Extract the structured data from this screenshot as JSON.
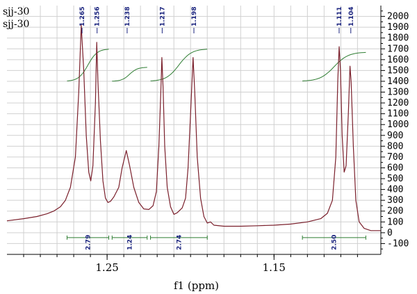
{
  "chart_data": {
    "type": "line",
    "sample_labels": [
      "sjj-30",
      "sjj-30"
    ],
    "xlabel": "f1 (ppm)",
    "x_ticks": [
      1.25,
      1.15
    ],
    "x_tick_labels": [
      "1.25",
      "1.15"
    ],
    "xlim": [
      1.31,
      1.086
    ],
    "ylim": [
      -200,
      2100
    ],
    "y_ticks": [
      -100,
      0,
      100,
      200,
      300,
      400,
      500,
      600,
      700,
      800,
      900,
      1000,
      1100,
      1200,
      1300,
      1400,
      1500,
      1600,
      1700,
      1800,
      1900,
      2000
    ],
    "y_tick_labels": [
      "-100",
      "0",
      "100",
      "200",
      "300",
      "400",
      "500",
      "600",
      "700",
      "800",
      "900",
      "1000",
      "1100",
      "1200",
      "1300",
      "1400",
      "1500",
      "1600",
      "1700",
      "1800",
      "1900",
      "2000"
    ],
    "grid": true,
    "spectrum_color": "#7a1f2b",
    "integral_color": "#2e7d32",
    "label_color": "#1a237e",
    "peaks": [
      {
        "ppm": 1.265,
        "label": "1.265",
        "height": 1960
      },
      {
        "ppm": 1.256,
        "label": "1.256",
        "height": 1760
      },
      {
        "ppm": 1.238,
        "label": "1.238",
        "height": 750
      },
      {
        "ppm": 1.217,
        "label": "1.217",
        "height": 1620
      },
      {
        "ppm": 1.198,
        "label": "1.198",
        "height": 1620
      },
      {
        "ppm": 1.111,
        "label": "1.111",
        "height": 1720
      },
      {
        "ppm": 1.104,
        "label": "1.104",
        "height": 1540
      }
    ],
    "spectrum": [
      [
        1.31,
        110
      ],
      [
        1.3,
        130
      ],
      [
        1.292,
        150
      ],
      [
        1.286,
        175
      ],
      [
        1.282,
        200
      ],
      [
        1.278,
        240
      ],
      [
        1.275,
        300
      ],
      [
        1.272,
        420
      ],
      [
        1.269,
        700
      ],
      [
        1.267,
        1300
      ],
      [
        1.2655,
        1920
      ],
      [
        1.264,
        1500
      ],
      [
        1.2625,
        900
      ],
      [
        1.261,
        560
      ],
      [
        1.2598,
        480
      ],
      [
        1.2585,
        620
      ],
      [
        1.257,
        1200
      ],
      [
        1.2562,
        1760
      ],
      [
        1.2555,
        1400
      ],
      [
        1.254,
        850
      ],
      [
        1.2525,
        480
      ],
      [
        1.251,
        320
      ],
      [
        1.2495,
        280
      ],
      [
        1.248,
        290
      ],
      [
        1.246,
        330
      ],
      [
        1.243,
        420
      ],
      [
        1.241,
        600
      ],
      [
        1.2385,
        760
      ],
      [
        1.2365,
        620
      ],
      [
        1.234,
        420
      ],
      [
        1.231,
        280
      ],
      [
        1.228,
        220
      ],
      [
        1.225,
        215
      ],
      [
        1.2225,
        250
      ],
      [
        1.2205,
        380
      ],
      [
        1.219,
        800
      ],
      [
        1.2178,
        1300
      ],
      [
        1.2172,
        1620
      ],
      [
        1.2165,
        1350
      ],
      [
        1.2155,
        800
      ],
      [
        1.214,
        420
      ],
      [
        1.212,
        240
      ],
      [
        1.21,
        170
      ],
      [
        1.208,
        185
      ],
      [
        1.205,
        230
      ],
      [
        1.203,
        320
      ],
      [
        1.2015,
        600
      ],
      [
        1.2,
        1100
      ],
      [
        1.1985,
        1620
      ],
      [
        1.1975,
        1300
      ],
      [
        1.196,
        700
      ],
      [
        1.194,
        320
      ],
      [
        1.192,
        150
      ],
      [
        1.19,
        90
      ],
      [
        1.188,
        100
      ],
      [
        1.186,
        70
      ],
      [
        1.18,
        60
      ],
      [
        1.17,
        60
      ],
      [
        1.16,
        65
      ],
      [
        1.15,
        70
      ],
      [
        1.14,
        80
      ],
      [
        1.13,
        100
      ],
      [
        1.122,
        130
      ],
      [
        1.118,
        180
      ],
      [
        1.115,
        300
      ],
      [
        1.113,
        700
      ],
      [
        1.1118,
        1400
      ],
      [
        1.111,
        1720
      ],
      [
        1.1102,
        1500
      ],
      [
        1.1092,
        900
      ],
      [
        1.108,
        560
      ],
      [
        1.1068,
        620
      ],
      [
        1.1055,
        1100
      ],
      [
        1.1045,
        1540
      ],
      [
        1.1038,
        1400
      ],
      [
        1.1025,
        800
      ],
      [
        1.101,
        300
      ],
      [
        1.099,
        100
      ],
      [
        1.096,
        40
      ],
      [
        1.092,
        20
      ],
      [
        1.086,
        20
      ]
    ],
    "integrals": [
      {
        "from": 1.274,
        "to": 1.249,
        "value": "2.79",
        "y_start": 1400,
        "y_end": 1700
      },
      {
        "from": 1.247,
        "to": 1.226,
        "value": "1.24",
        "y_start": 1400,
        "y_end": 1530
      },
      {
        "from": 1.224,
        "to": 1.19,
        "value": "2.74",
        "y_start": 1400,
        "y_end": 1700
      },
      {
        "from": 1.133,
        "to": 1.095,
        "value": "2.50",
        "y_start": 1400,
        "y_end": 1670
      }
    ]
  }
}
